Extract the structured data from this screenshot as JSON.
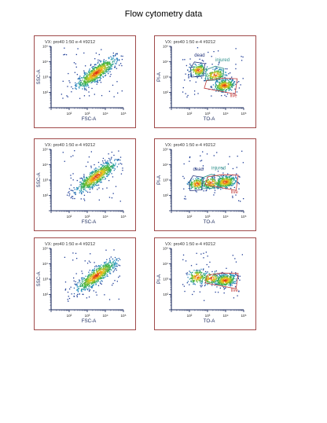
{
  "page": {
    "title": "Flow cytometry data"
  },
  "panel_common": {
    "tick_labels": [
      "10¹",
      "10²",
      "10³",
      "10⁴",
      "10⁵"
    ]
  },
  "chart_data": [
    {
      "type": "scatter",
      "title": "VX: pro40 1:50  e-4 #9212",
      "xlabel": "FSC-A",
      "ylabel": "SSC-A",
      "x_scale": "log",
      "y_scale": "log",
      "xlim": [
        10,
        100000
      ],
      "ylim": [
        10,
        100000
      ],
      "tick_labels": [
        "10¹",
        "10²",
        "10³",
        "10⁴",
        "10⁵"
      ],
      "populations": [
        {
          "center": [
            3000,
            2000
          ],
          "spread_x": 0.55,
          "spread_y": 0.5,
          "corr": 0.85,
          "count": 700
        }
      ],
      "gates": []
    },
    {
      "type": "scatter",
      "title": "VX: pro40 1:50  e-4 #9212",
      "xlabel": "TO-A",
      "ylabel": "PI-A",
      "x_scale": "log",
      "y_scale": "log",
      "xlim": [
        10,
        100000
      ],
      "ylim": [
        10,
        100000
      ],
      "tick_labels": [
        "10¹",
        "10²",
        "10³",
        "10⁴",
        "10⁵"
      ],
      "populations": [
        {
          "center": [
            300,
            3000
          ],
          "spread_x": 0.25,
          "spread_y": 0.2,
          "corr": 0.1,
          "count": 180
        },
        {
          "center": [
            2500,
            1500
          ],
          "spread_x": 0.3,
          "spread_y": 0.2,
          "corr": 0.2,
          "count": 160
        },
        {
          "center": [
            8000,
            300
          ],
          "spread_x": 0.3,
          "spread_y": 0.2,
          "corr": 0.2,
          "count": 320
        }
      ],
      "gates": [
        {
          "label": "dead",
          "color": "#22337a"
        },
        {
          "label": "injured",
          "color": "#2c8f8a"
        },
        {
          "label": "live",
          "color": "#c03a3a"
        }
      ]
    },
    {
      "type": "scatter",
      "title": "VX: pro40 1:50  e-4 #9212",
      "xlabel": "FSC-A",
      "ylabel": "SSC-A",
      "x_scale": "log",
      "y_scale": "log",
      "xlim": [
        10,
        100000
      ],
      "ylim": [
        10,
        100000
      ],
      "tick_labels": [
        "10¹",
        "10²",
        "10³",
        "10⁴",
        "10⁵"
      ],
      "populations": [
        {
          "center": [
            3000,
            1800
          ],
          "spread_x": 0.55,
          "spread_y": 0.5,
          "corr": 0.85,
          "count": 700
        }
      ],
      "gates": []
    },
    {
      "type": "scatter",
      "title": "VX: pro40 1:50  e-4 #9212",
      "xlabel": "TO-A",
      "ylabel": "PI-A",
      "x_scale": "log",
      "y_scale": "log",
      "xlim": [
        10,
        100000
      ],
      "ylim": [
        10,
        100000
      ],
      "tick_labels": [
        "10¹",
        "10²",
        "10³",
        "10⁴",
        "10⁵"
      ],
      "populations": [
        {
          "center": [
            250,
            600
          ],
          "spread_x": 0.25,
          "spread_y": 0.2,
          "corr": 0.1,
          "count": 160
        },
        {
          "center": [
            1500,
            700
          ],
          "spread_x": 0.3,
          "spread_y": 0.2,
          "corr": 0.1,
          "count": 130
        },
        {
          "center": [
            9000,
            800
          ],
          "spread_x": 0.3,
          "spread_y": 0.2,
          "corr": 0.2,
          "count": 360
        }
      ],
      "gates": [
        {
          "label": "dead",
          "color": "#22337a"
        },
        {
          "label": "injured",
          "color": "#2c8f8a"
        },
        {
          "label": "live",
          "color": "#c03a3a"
        }
      ]
    },
    {
      "type": "scatter",
      "title": "VX: pro40 1:50  e-4 #9212",
      "xlabel": "FSC-A",
      "ylabel": "SSC-A",
      "x_scale": "log",
      "y_scale": "log",
      "xlim": [
        10,
        100000
      ],
      "ylim": [
        10,
        100000
      ],
      "tick_labels": [
        "10¹",
        "10²",
        "10³",
        "10⁴",
        "10⁵"
      ],
      "populations": [
        {
          "center": [
            3000,
            1800
          ],
          "spread_x": 0.55,
          "spread_y": 0.5,
          "corr": 0.85,
          "count": 700
        }
      ],
      "gates": []
    },
    {
      "type": "scatter",
      "title": "VX: pro40 1:50  e-4 #9212",
      "xlabel": "TO-A",
      "ylabel": "PI-A",
      "x_scale": "log",
      "y_scale": "log",
      "xlim": [
        10,
        100000
      ],
      "ylim": [
        10,
        100000
      ],
      "tick_labels": [
        "10¹",
        "10²",
        "10³",
        "10⁴",
        "10⁵"
      ],
      "populations": [
        {
          "center": [
            250,
            1500
          ],
          "spread_x": 0.25,
          "spread_y": 0.25,
          "corr": 0.1,
          "count": 160
        },
        {
          "center": [
            1500,
            1200
          ],
          "spread_x": 0.3,
          "spread_y": 0.2,
          "corr": 0.1,
          "count": 140
        },
        {
          "center": [
            9000,
            900
          ],
          "spread_x": 0.3,
          "spread_y": 0.2,
          "corr": 0.2,
          "count": 360
        }
      ],
      "gates": [
        {
          "label": "live",
          "color": "#c03a3a"
        }
      ]
    }
  ]
}
